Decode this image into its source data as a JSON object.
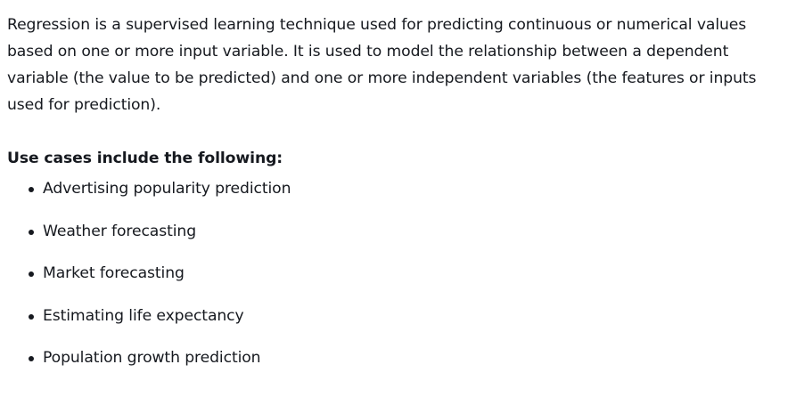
{
  "intro": {
    "paragraph": "Regression is a supervised learning technique used for predicting continuous or numerical values based on one or more input variable. It is used to model the relationship between a dependent variable (the value to be predicted) and one or more independent variables (the features or inputs used for prediction)."
  },
  "use_cases": {
    "heading": "Use cases include the following:",
    "items": [
      "Advertising popularity prediction",
      "Weather forecasting",
      "Market forecasting",
      "Estimating life expectancy",
      "Population growth prediction"
    ]
  }
}
